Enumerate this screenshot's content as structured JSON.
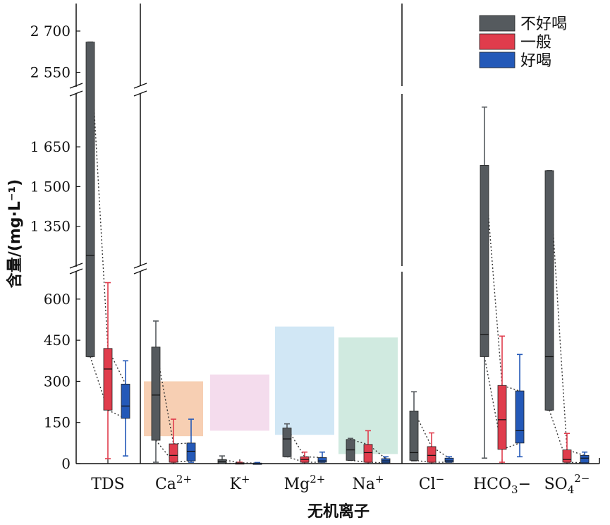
{
  "chart_data": {
    "type": "box",
    "xlabel": "无机离子",
    "ylabel": "含量/(mg·L⁻¹)",
    "y_axis_segments": [
      {
        "range": [
          2500,
          2800
        ],
        "ticks": [
          2550,
          2700
        ],
        "tick_labels": [
          "2 550",
          "2 700"
        ]
      },
      {
        "range": [
          1200,
          1850
        ],
        "ticks": [
          1350,
          1500,
          1650
        ],
        "tick_labels": [
          "1 350",
          "1 500",
          "1 650"
        ]
      },
      {
        "range": [
          0,
          700
        ],
        "ticks": [
          0,
          150,
          300,
          450,
          600
        ],
        "tick_labels": [
          "0",
          "150",
          "300",
          "450",
          "600"
        ]
      }
    ],
    "categories": [
      {
        "name": "TDS",
        "sup": "",
        "sub": "",
        "post": ""
      },
      {
        "name": "Ca",
        "sup": "2+",
        "sub": "",
        "post": ""
      },
      {
        "name": "K",
        "sup": "+",
        "sub": "",
        "post": ""
      },
      {
        "name": "Mg",
        "sup": "2+",
        "sub": "",
        "post": ""
      },
      {
        "name": "Na",
        "sup": "+",
        "sub": "",
        "post": ""
      },
      {
        "name": "Cl",
        "sup": "−",
        "sub": "",
        "post": ""
      },
      {
        "name": "HCO",
        "sup": "",
        "sub": "3",
        "post": "−"
      },
      {
        "name": "SO",
        "sup": "2−",
        "sub": "4",
        "post": ""
      }
    ],
    "series": [
      {
        "name": "不好喝",
        "color": "#555a5e",
        "boxes": [
          {
            "min": 390,
            "q1": 390,
            "median": 1240,
            "q3": 2660,
            "max": 2660
          },
          {
            "min": 5,
            "q1": 85,
            "median": 250,
            "q3": 425,
            "max": 520
          },
          {
            "min": 0,
            "q1": 2,
            "median": 8,
            "q3": 15,
            "max": 28
          },
          {
            "min": 25,
            "q1": 25,
            "median": 90,
            "q3": 130,
            "max": 145
          },
          {
            "min": 12,
            "q1": 12,
            "median": 50,
            "q3": 88,
            "max": 92
          },
          {
            "min": 10,
            "q1": 12,
            "median": 40,
            "q3": 192,
            "max": 262
          },
          {
            "min": 20,
            "q1": 390,
            "median": 470,
            "q3": 1580,
            "max": 1800
          },
          {
            "min": 195,
            "q1": 195,
            "median": 390,
            "q3": 1560,
            "max": 1560
          }
        ]
      },
      {
        "name": "一般",
        "color": "#e03c4c",
        "boxes": [
          {
            "min": 18,
            "q1": 195,
            "median": 345,
            "q3": 420,
            "max": 660
          },
          {
            "min": 5,
            "q1": 5,
            "median": 30,
            "q3": 72,
            "max": 162
          },
          {
            "min": 0,
            "q1": 0,
            "median": 1,
            "q3": 3,
            "max": 5
          },
          {
            "min": 5,
            "q1": 5,
            "median": 15,
            "q3": 25,
            "max": 42
          },
          {
            "min": 5,
            "q1": 5,
            "median": 40,
            "q3": 70,
            "max": 120
          },
          {
            "min": 5,
            "q1": 5,
            "median": 30,
            "q3": 62,
            "max": 112
          },
          {
            "min": 5,
            "q1": 52,
            "median": 160,
            "q3": 285,
            "max": 465
          },
          {
            "min": 5,
            "q1": 5,
            "median": 15,
            "q3": 50,
            "max": 110
          }
        ]
      },
      {
        "name": "好喝",
        "color": "#2459b8",
        "boxes": [
          {
            "min": 28,
            "q1": 165,
            "median": 210,
            "q3": 290,
            "max": 375
          },
          {
            "min": 5,
            "q1": 10,
            "median": 45,
            "q3": 75,
            "max": 162
          },
          {
            "min": 0,
            "q1": 0,
            "median": 1,
            "q3": 2,
            "max": 4
          },
          {
            "min": 5,
            "q1": 5,
            "median": 10,
            "q3": 22,
            "max": 42
          },
          {
            "min": 3,
            "q1": 3,
            "median": 10,
            "q3": 18,
            "max": 25
          },
          {
            "min": 5,
            "q1": 5,
            "median": 10,
            "q3": 20,
            "max": 25
          },
          {
            "min": 25,
            "q1": 75,
            "median": 120,
            "q3": 265,
            "max": 398
          },
          {
            "min": 3,
            "q1": 3,
            "median": 20,
            "q3": 30,
            "max": 42
          }
        ]
      }
    ],
    "shaded_ranges": [
      {
        "category": "Ca",
        "low": 100,
        "high": 300,
        "color": "#f6c7a6"
      },
      {
        "category": "K",
        "low": 120,
        "high": 325,
        "color": "#f2d6ea"
      },
      {
        "category": "Mg",
        "low": 105,
        "high": 500,
        "color": "#c9e3f3"
      },
      {
        "category": "Na",
        "low": 35,
        "high": 460,
        "color": "#c8e6da"
      }
    ],
    "legend": {
      "position": "top-right",
      "entries": [
        "不好喝",
        "一般",
        "好喝"
      ]
    }
  }
}
